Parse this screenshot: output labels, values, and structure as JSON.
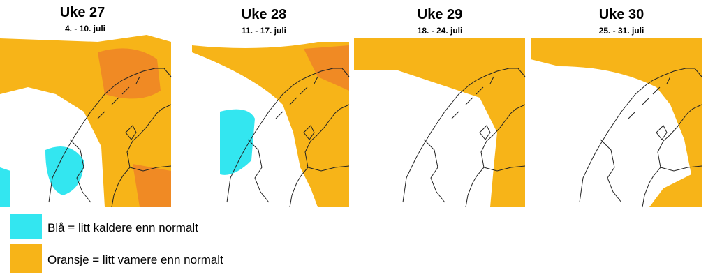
{
  "panels": [
    {
      "title": "Uke 27",
      "dates": "4. - 10. juli"
    },
    {
      "title": "Uke 28",
      "dates": "11. - 17. juli"
    },
    {
      "title": "Uke 29",
      "dates": "18. - 24. juli"
    },
    {
      "title": "Uke 30",
      "dates": "25. - 31. juli"
    }
  ],
  "legend": [
    {
      "label": "Blå = litt kaldere enn normalt"
    },
    {
      "label": "Oransje = litt vamere enn normalt"
    }
  ]
}
